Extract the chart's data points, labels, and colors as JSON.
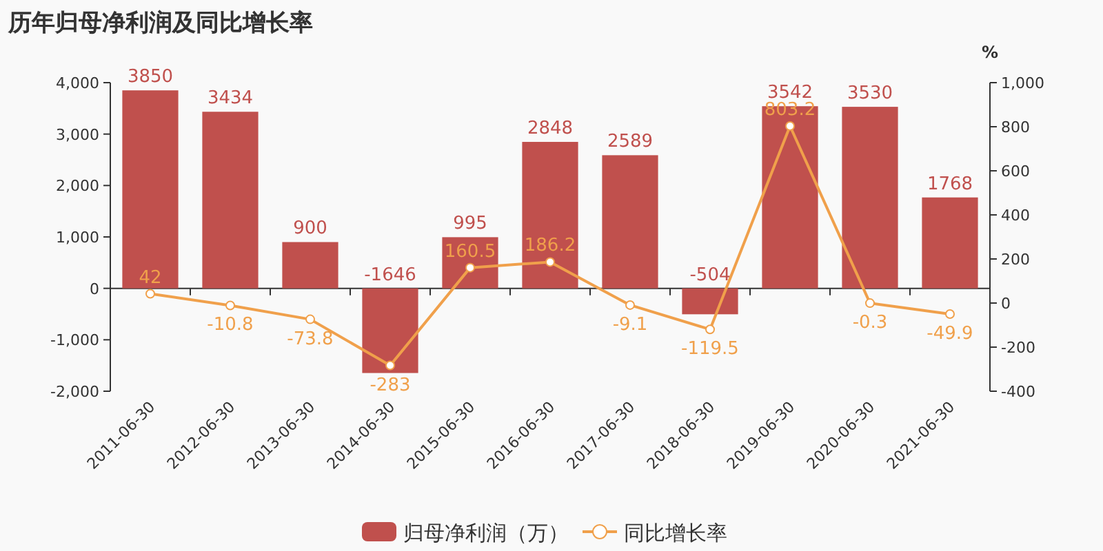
{
  "chart_data": {
    "type": "bar",
    "title": "历年归母净利润及同比增长率",
    "y2label": "%",
    "categories": [
      "2011-06-30",
      "2012-06-30",
      "2013-06-30",
      "2014-06-30",
      "2015-06-30",
      "2016-06-30",
      "2017-06-30",
      "2018-06-30",
      "2019-06-30",
      "2020-06-30",
      "2021-06-30"
    ],
    "series": [
      {
        "name": "归母净利润（万）",
        "color": "#c0504d",
        "values": [
          3850,
          3434,
          900,
          -1646,
          995,
          2848,
          2589,
          -504,
          3542,
          3530,
          1768
        ]
      },
      {
        "name": "同比增长率",
        "type": "line",
        "axis": "y2",
        "color": "#f0a04b",
        "values": [
          42,
          -10.8,
          -73.8,
          -283,
          160.5,
          186.2,
          -9.1,
          -119.5,
          803.2,
          -0.3,
          -49.9
        ]
      }
    ],
    "ylim": [
      -2000,
      4000
    ],
    "yticks": [
      {
        "value": -2000,
        "label": "-2,000"
      },
      {
        "value": -1000,
        "label": "-1,000"
      },
      0,
      {
        "value": 1000,
        "label": "1,000"
      },
      {
        "value": 2000,
        "label": "2,000"
      },
      {
        "value": 3000,
        "label": "3,000"
      },
      {
        "value": 4000,
        "label": "4,000"
      }
    ],
    "y2lim": [
      -400,
      1000
    ],
    "y2ticks": [
      -400,
      -200,
      0,
      200,
      400,
      600,
      800,
      {
        "value": 1000,
        "label": "1,000"
      }
    ],
    "data_labels": true,
    "marker": "circle",
    "legend": "bottom"
  }
}
